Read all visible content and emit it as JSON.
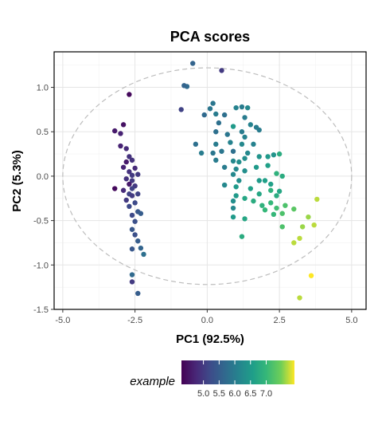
{
  "chart_data": {
    "type": "scatter",
    "title": "PCA scores",
    "xlabel": "PC1 (92.5%)",
    "ylabel": "PC2 (5.3%)",
    "xlim": [
      -5.3,
      5.5
    ],
    "ylim": [
      -1.5,
      1.4
    ],
    "xticks": [
      -5.0,
      -2.5,
      0.0,
      2.5,
      5.0
    ],
    "xtick_labels": [
      "-5.0",
      "-2.5",
      "0.0",
      "2.5",
      "5.0"
    ],
    "yticks": [
      -1.5,
      -1.0,
      -0.5,
      0.0,
      0.5,
      1.0
    ],
    "ytick_labels": [
      "-1.5",
      "-1.0",
      "-0.5",
      "0.0",
      "0.5",
      "1.0"
    ],
    "grid": true,
    "ellipse": {
      "rx": 5.0,
      "ry": 1.22,
      "style": "dashed",
      "color": "#bdbdbd"
    },
    "legend": {
      "title": "example",
      "position": "bottom",
      "range": [
        4.3,
        7.9
      ],
      "ticks": [
        5.0,
        5.5,
        6.0,
        6.5,
        7.0
      ],
      "tick_labels": [
        "5.0",
        "5.5",
        "6.0",
        "6.5",
        "7.0"
      ]
    },
    "colormap": "viridis",
    "points": [
      {
        "x": -2.7,
        "y": 0.92,
        "c": 4.4
      },
      {
        "x": -3.2,
        "y": 0.51,
        "c": 4.6
      },
      {
        "x": -2.9,
        "y": 0.58,
        "c": 4.5
      },
      {
        "x": -3.0,
        "y": 0.48,
        "c": 4.7
      },
      {
        "x": -3.0,
        "y": 0.34,
        "c": 4.7
      },
      {
        "x": -2.8,
        "y": 0.31,
        "c": 4.8
      },
      {
        "x": -2.7,
        "y": 0.22,
        "c": 4.9
      },
      {
        "x": -2.6,
        "y": 0.18,
        "c": 4.9
      },
      {
        "x": -2.8,
        "y": 0.16,
        "c": 4.6
      },
      {
        "x": -2.9,
        "y": 0.1,
        "c": 4.7
      },
      {
        "x": -2.5,
        "y": 0.09,
        "c": 4.8
      },
      {
        "x": -2.7,
        "y": 0.05,
        "c": 4.9
      },
      {
        "x": -2.6,
        "y": 0.01,
        "c": 5.0
      },
      {
        "x": -2.4,
        "y": 0.02,
        "c": 5.0
      },
      {
        "x": -2.8,
        "y": -0.03,
        "c": 4.9
      },
      {
        "x": -2.6,
        "y": -0.05,
        "c": 5.0
      },
      {
        "x": -2.7,
        "y": -0.09,
        "c": 4.6
      },
      {
        "x": -2.5,
        "y": -0.11,
        "c": 5.0
      },
      {
        "x": -2.6,
        "y": -0.14,
        "c": 5.1
      },
      {
        "x": -2.9,
        "y": -0.16,
        "c": 4.8
      },
      {
        "x": -3.2,
        "y": -0.14,
        "c": 4.4
      },
      {
        "x": -2.7,
        "y": -0.2,
        "c": 5.1
      },
      {
        "x": -2.6,
        "y": -0.22,
        "c": 5.0
      },
      {
        "x": -2.4,
        "y": -0.2,
        "c": 5.1
      },
      {
        "x": -2.8,
        "y": -0.27,
        "c": 5.0
      },
      {
        "x": -2.5,
        "y": -0.3,
        "c": 5.2
      },
      {
        "x": -2.7,
        "y": -0.34,
        "c": 5.2
      },
      {
        "x": -2.4,
        "y": -0.4,
        "c": 5.4
      },
      {
        "x": -2.6,
        "y": -0.44,
        "c": 5.2
      },
      {
        "x": -2.3,
        "y": -0.42,
        "c": 5.5
      },
      {
        "x": -2.5,
        "y": -0.51,
        "c": 5.3
      },
      {
        "x": -2.6,
        "y": -0.6,
        "c": 5.4
      },
      {
        "x": -2.5,
        "y": -0.66,
        "c": 5.3
      },
      {
        "x": -2.4,
        "y": -0.73,
        "c": 5.5
      },
      {
        "x": -2.3,
        "y": -0.81,
        "c": 5.6
      },
      {
        "x": -2.6,
        "y": -0.82,
        "c": 5.4
      },
      {
        "x": -2.2,
        "y": -0.88,
        "c": 5.8
      },
      {
        "x": -2.6,
        "y": -1.11,
        "c": 5.7
      },
      {
        "x": -2.6,
        "y": -1.19,
        "c": 5.0
      },
      {
        "x": -2.4,
        "y": -1.32,
        "c": 5.5
      },
      {
        "x": -0.5,
        "y": 1.27,
        "c": 5.6
      },
      {
        "x": 0.5,
        "y": 1.19,
        "c": 5.0
      },
      {
        "x": -0.7,
        "y": 1.01,
        "c": 5.7
      },
      {
        "x": -0.8,
        "y": 1.02,
        "c": 5.6
      },
      {
        "x": -0.9,
        "y": 0.75,
        "c": 5.1
      },
      {
        "x": 0.2,
        "y": 0.82,
        "c": 5.9
      },
      {
        "x": 0.1,
        "y": 0.76,
        "c": 5.9
      },
      {
        "x": 0.3,
        "y": 0.7,
        "c": 6.0
      },
      {
        "x": -0.1,
        "y": 0.69,
        "c": 5.7
      },
      {
        "x": 0.6,
        "y": 0.69,
        "c": 5.8
      },
      {
        "x": 1.0,
        "y": 0.77,
        "c": 6.1
      },
      {
        "x": 1.2,
        "y": 0.78,
        "c": 6.0
      },
      {
        "x": 1.4,
        "y": 0.77,
        "c": 6.2
      },
      {
        "x": 1.3,
        "y": 0.66,
        "c": 6.0
      },
      {
        "x": 0.4,
        "y": 0.6,
        "c": 5.8
      },
      {
        "x": 0.9,
        "y": 0.56,
        "c": 6.5
      },
      {
        "x": 1.5,
        "y": 0.58,
        "c": 6.1
      },
      {
        "x": 1.7,
        "y": 0.55,
        "c": 6.0
      },
      {
        "x": 1.8,
        "y": 0.52,
        "c": 6.0
      },
      {
        "x": 0.3,
        "y": 0.5,
        "c": 5.8
      },
      {
        "x": 0.7,
        "y": 0.47,
        "c": 5.9
      },
      {
        "x": 1.2,
        "y": 0.5,
        "c": 6.0
      },
      {
        "x": 1.3,
        "y": 0.44,
        "c": 6.1
      },
      {
        "x": -0.4,
        "y": 0.36,
        "c": 5.8
      },
      {
        "x": 0.3,
        "y": 0.36,
        "c": 6.0
      },
      {
        "x": 0.8,
        "y": 0.38,
        "c": 6.1
      },
      {
        "x": 1.2,
        "y": 0.36,
        "c": 6.2
      },
      {
        "x": 1.6,
        "y": 0.36,
        "c": 6.1
      },
      {
        "x": 0.5,
        "y": 0.28,
        "c": 5.9
      },
      {
        "x": 0.2,
        "y": 0.26,
        "c": 5.9
      },
      {
        "x": -0.2,
        "y": 0.26,
        "c": 6.0
      },
      {
        "x": 0.9,
        "y": 0.28,
        "c": 5.8
      },
      {
        "x": 1.4,
        "y": 0.26,
        "c": 6.2
      },
      {
        "x": 1.3,
        "y": 0.2,
        "c": 6.3
      },
      {
        "x": 0.3,
        "y": 0.18,
        "c": 6.0
      },
      {
        "x": 1.8,
        "y": 0.22,
        "c": 6.4
      },
      {
        "x": 2.1,
        "y": 0.22,
        "c": 6.5
      },
      {
        "x": 2.3,
        "y": 0.24,
        "c": 6.4
      },
      {
        "x": 2.5,
        "y": 0.25,
        "c": 6.8
      },
      {
        "x": 0.9,
        "y": 0.17,
        "c": 6.2
      },
      {
        "x": 1.1,
        "y": 0.16,
        "c": 6.3
      },
      {
        "x": 1.7,
        "y": 0.1,
        "c": 6.5
      },
      {
        "x": 2.1,
        "y": 0.12,
        "c": 6.6
      },
      {
        "x": 0.6,
        "y": 0.1,
        "c": 6.0
      },
      {
        "x": 1.0,
        "y": 0.08,
        "c": 6.2
      },
      {
        "x": 1.3,
        "y": 0.06,
        "c": 6.3
      },
      {
        "x": 2.4,
        "y": 0.03,
        "c": 6.9
      },
      {
        "x": 0.9,
        "y": 0.02,
        "c": 6.2
      },
      {
        "x": 2.6,
        "y": 0.0,
        "c": 6.8
      },
      {
        "x": 1.1,
        "y": -0.05,
        "c": 6.3
      },
      {
        "x": 2.0,
        "y": -0.05,
        "c": 6.6
      },
      {
        "x": 1.8,
        "y": -0.05,
        "c": 6.5
      },
      {
        "x": 2.2,
        "y": -0.09,
        "c": 6.6
      },
      {
        "x": 0.6,
        "y": -0.1,
        "c": 6.2
      },
      {
        "x": 1.0,
        "y": -0.12,
        "c": 6.5
      },
      {
        "x": 1.5,
        "y": -0.14,
        "c": 6.6
      },
      {
        "x": 2.2,
        "y": -0.16,
        "c": 6.9
      },
      {
        "x": 2.5,
        "y": -0.17,
        "c": 6.7
      },
      {
        "x": 1.8,
        "y": -0.2,
        "c": 6.7
      },
      {
        "x": 2.4,
        "y": -0.22,
        "c": 6.8
      },
      {
        "x": 1.0,
        "y": -0.22,
        "c": 6.5
      },
      {
        "x": 1.3,
        "y": -0.25,
        "c": 6.7
      },
      {
        "x": 1.6,
        "y": -0.28,
        "c": 6.8
      },
      {
        "x": 0.9,
        "y": -0.28,
        "c": 6.3
      },
      {
        "x": 2.2,
        "y": -0.3,
        "c": 7.0
      },
      {
        "x": 1.9,
        "y": -0.33,
        "c": 6.9
      },
      {
        "x": 2.7,
        "y": -0.33,
        "c": 7.2
      },
      {
        "x": 0.9,
        "y": -0.36,
        "c": 6.2
      },
      {
        "x": 2.4,
        "y": -0.36,
        "c": 7.1
      },
      {
        "x": 3.0,
        "y": -0.37,
        "c": 7.3
      },
      {
        "x": 3.8,
        "y": -0.26,
        "c": 7.7
      },
      {
        "x": 2.0,
        "y": -0.38,
        "c": 7.0
      },
      {
        "x": 2.6,
        "y": -0.42,
        "c": 7.2
      },
      {
        "x": 2.3,
        "y": -0.43,
        "c": 7.0
      },
      {
        "x": 3.5,
        "y": -0.46,
        "c": 7.6
      },
      {
        "x": 0.9,
        "y": -0.46,
        "c": 6.5
      },
      {
        "x": 1.3,
        "y": -0.48,
        "c": 6.7
      },
      {
        "x": 3.7,
        "y": -0.55,
        "c": 7.7
      },
      {
        "x": 2.6,
        "y": -0.57,
        "c": 7.2
      },
      {
        "x": 3.3,
        "y": -0.57,
        "c": 7.6
      },
      {
        "x": 1.2,
        "y": -0.68,
        "c": 6.8
      },
      {
        "x": 3.2,
        "y": -0.7,
        "c": 7.7
      },
      {
        "x": 3.0,
        "y": -0.75,
        "c": 7.7
      },
      {
        "x": 3.6,
        "y": -1.12,
        "c": 7.9
      },
      {
        "x": 3.2,
        "y": -1.37,
        "c": 7.7
      }
    ]
  }
}
